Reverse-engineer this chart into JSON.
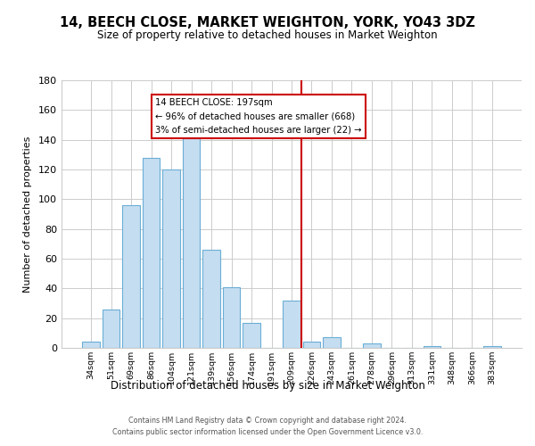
{
  "title": "14, BEECH CLOSE, MARKET WEIGHTON, YORK, YO43 3DZ",
  "subtitle": "Size of property relative to detached houses in Market Weighton",
  "xlabel": "Distribution of detached houses by size in Market Weighton",
  "ylabel": "Number of detached properties",
  "bar_labels": [
    "34sqm",
    "51sqm",
    "69sqm",
    "86sqm",
    "104sqm",
    "121sqm",
    "139sqm",
    "156sqm",
    "174sqm",
    "191sqm",
    "209sqm",
    "226sqm",
    "243sqm",
    "261sqm",
    "278sqm",
    "296sqm",
    "313sqm",
    "331sqm",
    "348sqm",
    "366sqm",
    "383sqm"
  ],
  "bar_values": [
    4,
    26,
    96,
    128,
    120,
    151,
    66,
    41,
    17,
    0,
    32,
    4,
    7,
    0,
    3,
    0,
    0,
    1,
    0,
    0,
    1
  ],
  "bar_color": "#c5ddf0",
  "bar_edge_color": "#6aaed6",
  "ylim": [
    0,
    180
  ],
  "yticks": [
    0,
    20,
    40,
    60,
    80,
    100,
    120,
    140,
    160,
    180
  ],
  "vline_x": 10.5,
  "vline_color": "#cc0000",
  "annotation_title": "14 BEECH CLOSE: 197sqm",
  "annotation_line1": "← 96% of detached houses are smaller (668)",
  "annotation_line2": "3% of semi-detached houses are larger (22) →",
  "footer1": "Contains HM Land Registry data © Crown copyright and database right 2024.",
  "footer2": "Contains public sector information licensed under the Open Government Licence v3.0."
}
